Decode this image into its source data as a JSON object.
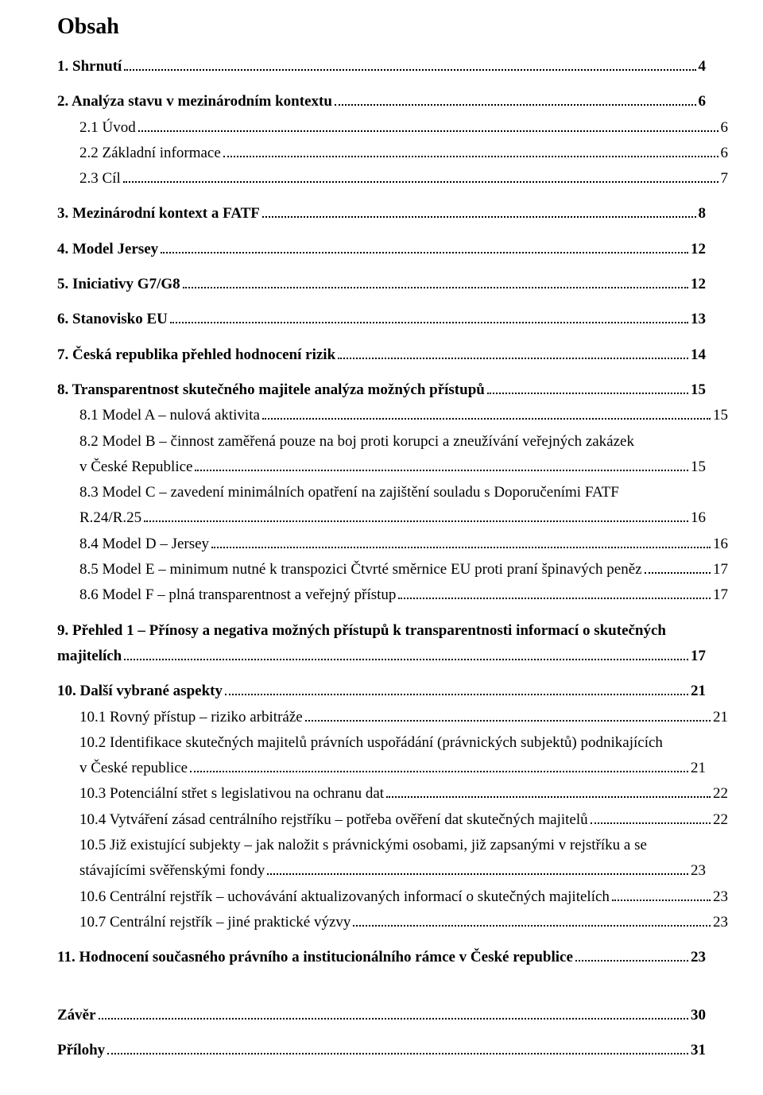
{
  "title": "Obsah",
  "entries": [
    {
      "label": "1. Shrnutí",
      "page": "4",
      "level": 0,
      "bold": true,
      "gap": false
    },
    {
      "label": "2. Analýza stavu v mezinárodním kontextu",
      "page": "6",
      "level": 0,
      "bold": true,
      "gap": true
    },
    {
      "label": "2.1 Úvod",
      "page": "6",
      "level": 1,
      "bold": false,
      "gap": false
    },
    {
      "label": "2.2 Základní informace",
      "page": "6",
      "level": 1,
      "bold": false,
      "gap": false
    },
    {
      "label": "2.3 Cíl",
      "page": "7",
      "level": 1,
      "bold": false,
      "gap": false
    },
    {
      "label": "3. Mezinárodní kontext a FATF",
      "page": "8",
      "level": 0,
      "bold": true,
      "gap": true
    },
    {
      "label": "4. Model Jersey",
      "page": "12",
      "level": 0,
      "bold": true,
      "gap": true
    },
    {
      "label": "5. Iniciativy G7/G8",
      "page": "12",
      "level": 0,
      "bold": true,
      "gap": true
    },
    {
      "label": "6. Stanovisko EU",
      "page": "13",
      "level": 0,
      "bold": true,
      "gap": true
    },
    {
      "label": "7. Česká republika přehled hodnocení rizik",
      "page": "14",
      "level": 0,
      "bold": true,
      "gap": true
    },
    {
      "label": "8. Transparentnost skutečného majitele analýza možných přístupů",
      "page": "15",
      "level": 0,
      "bold": true,
      "gap": true
    },
    {
      "label": "8.1 Model A – nulová aktivita",
      "page": "15",
      "level": 1,
      "bold": false,
      "gap": false
    },
    {
      "label_first": "8.2 Model B – činnost zaměřená pouze na boj proti korupci a zneužívání veřejných zakázek",
      "label_last": "v České Republice",
      "page": "15",
      "level": 1,
      "bold": false,
      "gap": false,
      "multiline": true
    },
    {
      "label_first": "8.3 Model C – zavedení minimálních opatření na zajištění souladu s Doporučeními FATF",
      "label_last": "R.24/R.25",
      "page": "16",
      "level": 1,
      "bold": false,
      "gap": false,
      "multiline": true
    },
    {
      "label": "8.4 Model D – Jersey",
      "page": "16",
      "level": 1,
      "bold": false,
      "gap": false
    },
    {
      "label": "8.5 Model E – minimum nutné k transpozici Čtvrté směrnice EU proti praní špinavých peněz",
      "page": "17",
      "level": 1,
      "bold": false,
      "gap": false
    },
    {
      "label": "8.6 Model F – plná transparentnost a veřejný přístup",
      "page": "17",
      "level": 1,
      "bold": false,
      "gap": false
    },
    {
      "label_first": "9. Přehled 1 – Přínosy a negativa možných přístupů k transparentnosti informací o skutečných",
      "label_last": "majitelích",
      "page": "17",
      "level": 0,
      "bold": true,
      "gap": true,
      "multiline": true,
      "unindent_cont": true
    },
    {
      "label": "10. Další vybrané aspekty",
      "page": "21",
      "level": 0,
      "bold": true,
      "gap": true
    },
    {
      "label": "10.1 Rovný přístup – riziko arbitráže",
      "page": "21",
      "level": 1,
      "bold": false,
      "gap": false
    },
    {
      "label_first": "10.2 Identifikace skutečných majitelů právních uspořádání (právnických subjektů) podnikajících",
      "label_last": "v České republice",
      "page": "21",
      "level": 1,
      "bold": false,
      "gap": false,
      "multiline": true
    },
    {
      "label": "10.3 Potenciální střet s legislativou na ochranu dat",
      "page": "22",
      "level": 1,
      "bold": false,
      "gap": false
    },
    {
      "label": "10.4 Vytváření zásad centrálního rejstříku – potřeba ověření dat skutečných majitelů",
      "page": "22",
      "level": 1,
      "bold": false,
      "gap": false
    },
    {
      "label_first": "10.5 Již existující subjekty – jak naložit s právnickými osobami, již zapsanými v rejstříku a se",
      "label_last": "stávajícími svěřenskými fondy",
      "page": "23",
      "level": 1,
      "bold": false,
      "gap": false,
      "multiline": true
    },
    {
      "label": "10.6 Centrální rejstřík – uchovávání aktualizovaných informací o skutečných majitelích",
      "page": "23",
      "level": 1,
      "bold": false,
      "gap": false
    },
    {
      "label": "10.7 Centrální rejstřík – jiné praktické výzvy",
      "page": "23",
      "level": 1,
      "bold": false,
      "gap": false
    },
    {
      "label": "11. Hodnocení současného právního a institucionálního rámce v České republice",
      "page": "23",
      "level": 0,
      "bold": true,
      "gap": true
    },
    {
      "label": "Závěr",
      "page": "30",
      "level": 0,
      "bold": true,
      "gap": "big"
    },
    {
      "label": "Přílohy",
      "page": "31",
      "level": 0,
      "bold": true,
      "gap": true
    }
  ]
}
